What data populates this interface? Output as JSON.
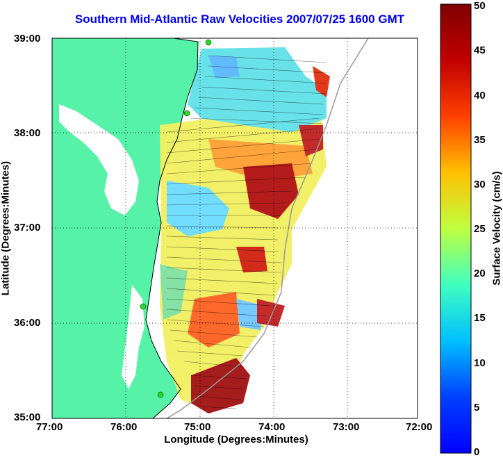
{
  "title": "Southern Mid-Atlantic Raw Velocities 2007/07/25 1600 GMT",
  "xlabel": "Longitude (Degrees:Minutes)",
  "ylabel": "Latitude (Degrees:Minutes)",
  "colorbar_label": "Surface Velocity (cm/s)",
  "x_ticks": [
    "77:00",
    "76:00",
    "75:00",
    "74:00",
    "73:00",
    "72:00"
  ],
  "y_ticks": [
    "39:00",
    "38:00",
    "37:00",
    "36:00",
    "35:00"
  ],
  "colorbar_ticks": [
    "50",
    "45",
    "40",
    "35",
    "30",
    "25",
    "20",
    "15",
    "10",
    "5",
    "0"
  ],
  "colors": {
    "land": "#55f2a8",
    "title": "#0000ee",
    "grid": "#000000"
  },
  "map": {
    "lon_range": [
      -77,
      -72
    ],
    "lat_range": [
      35,
      39
    ],
    "grid": true
  },
  "colorbar": {
    "min": 0,
    "max": 50,
    "colormap": "jet"
  }
}
